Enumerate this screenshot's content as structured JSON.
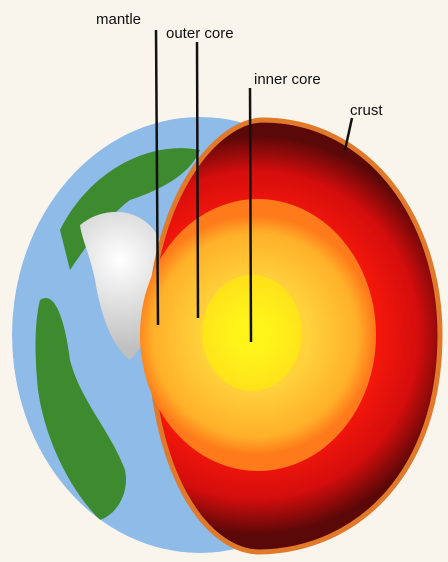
{
  "diagram": {
    "labels": {
      "mantle": "mantle",
      "outer_core": "outer core",
      "inner_core": "inner core",
      "crust": "crust"
    },
    "colors": {
      "background": "#faf5ec",
      "ocean": "#8fbbe8",
      "land": "#3e8a2e",
      "cloud": "#e6e6e6",
      "crust": "#e07a2a",
      "mantle": "#d81010",
      "mantle_edge": "#5a0808",
      "outer_core": "#ffbf2e",
      "inner_core": "#ffee1a",
      "pointer": "#111111"
    }
  }
}
